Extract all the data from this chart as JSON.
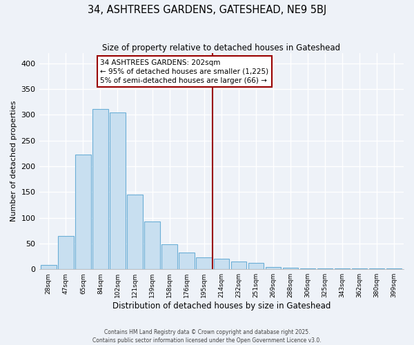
{
  "title": "34, ASHTREES GARDENS, GATESHEAD, NE9 5BJ",
  "subtitle": "Size of property relative to detached houses in Gateshead",
  "xlabel": "Distribution of detached houses by size in Gateshead",
  "ylabel": "Number of detached properties",
  "bar_labels": [
    "28sqm",
    "47sqm",
    "65sqm",
    "84sqm",
    "102sqm",
    "121sqm",
    "139sqm",
    "158sqm",
    "176sqm",
    "195sqm",
    "214sqm",
    "232sqm",
    "251sqm",
    "269sqm",
    "288sqm",
    "306sqm",
    "325sqm",
    "343sqm",
    "362sqm",
    "380sqm",
    "399sqm"
  ],
  "bar_values": [
    8,
    65,
    222,
    311,
    305,
    145,
    93,
    48,
    32,
    23,
    20,
    15,
    12,
    4,
    3,
    2,
    1,
    1,
    1,
    1,
    1
  ],
  "bar_color": "#c8dff0",
  "bar_edge_color": "#6baed6",
  "vline_x_idx": 9.5,
  "vline_color": "#990000",
  "annotation_title": "34 ASHTREES GARDENS: 202sqm",
  "annotation_line1": "← 95% of detached houses are smaller (1,225)",
  "annotation_line2": "5% of semi-detached houses are larger (66) →",
  "annotation_box_color": "#ffffff",
  "annotation_box_edge": "#990000",
  "ylim": [
    0,
    420
  ],
  "yticks": [
    0,
    50,
    100,
    150,
    200,
    250,
    300,
    350,
    400
  ],
  "background_color": "#eef2f8",
  "grid_color": "#ffffff",
  "footer_line1": "Contains HM Land Registry data © Crown copyright and database right 2025.",
  "footer_line2": "Contains public sector information licensed under the Open Government Licence v3.0."
}
